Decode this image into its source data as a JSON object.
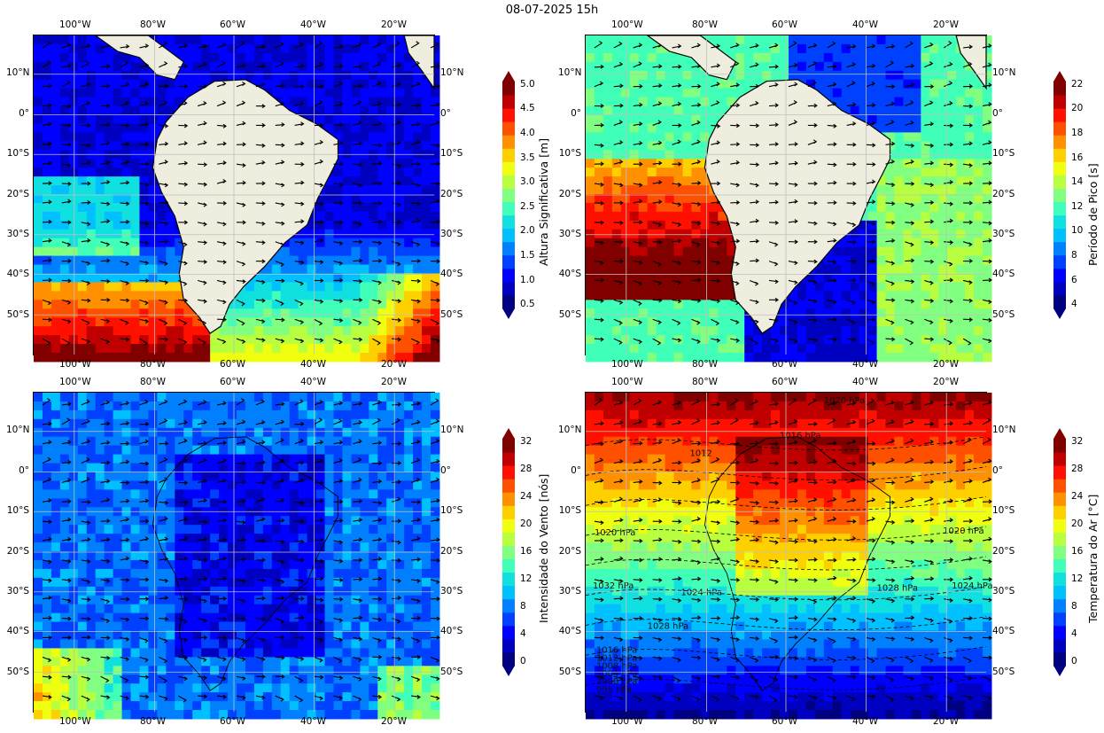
{
  "title": "08-07-2025 15h",
  "axis": {
    "lon_ticks": [
      "100°W",
      "80°W",
      "60°W",
      "40°W",
      "20°W"
    ],
    "lat_ticks": [
      "10°N",
      "0°",
      "10°S",
      "20°S",
      "30°S",
      "40°S",
      "50°S"
    ]
  },
  "panels": [
    {
      "id": "hs",
      "field": "significant-wave-height",
      "colorbar_label": "Altura Significativa [m]",
      "colorbar_ticks": [
        "0.5",
        "1.0",
        "1.5",
        "2.0",
        "2.5",
        "3.0",
        "3.5",
        "4.0",
        "4.5",
        "5.0"
      ],
      "has_land": true
    },
    {
      "id": "tp",
      "field": "peak-period",
      "colorbar_label": "Período de Pico [s]",
      "colorbar_ticks": [
        "4",
        "6",
        "8",
        "10",
        "12",
        "14",
        "16",
        "18",
        "20",
        "22"
      ],
      "has_land": true
    },
    {
      "id": "wind",
      "field": "wind-speed",
      "colorbar_label": "Intensidade do Vento [nós]",
      "colorbar_ticks": [
        "0",
        "4",
        "8",
        "12",
        "16",
        "20",
        "24",
        "28",
        "32"
      ],
      "has_land": false
    },
    {
      "id": "temp",
      "field": "air-temperature",
      "colorbar_label": "Temperatura do Ar [°C]",
      "colorbar_ticks": [
        "0",
        "4",
        "8",
        "12",
        "16",
        "20",
        "24",
        "28",
        "32"
      ],
      "has_land": false,
      "isobar_labels": [
        "1020 hPa",
        "1016 hPa",
        "1012",
        "1020 hPa",
        "1020 hPa",
        "1032 hPa",
        "1024 hPa",
        "1028 hPa",
        "1028 hPa",
        "1024 hPa",
        "1016 hPa",
        "1012 hPa",
        "1008 hPa",
        "1004 hPa",
        "1000 hPa",
        "996 hPa"
      ]
    }
  ],
  "colors": {
    "jet": [
      "#000080",
      "#0000c0",
      "#0000ff",
      "#0040ff",
      "#0080ff",
      "#00c0ff",
      "#10e0e0",
      "#40ffb8",
      "#80ff80",
      "#b8ff40",
      "#f0ff10",
      "#ffd000",
      "#ff9000",
      "#ff5000",
      "#ff1000",
      "#c00000",
      "#800000"
    ],
    "land": "#efedde",
    "grid": "#bfbfbf"
  }
}
